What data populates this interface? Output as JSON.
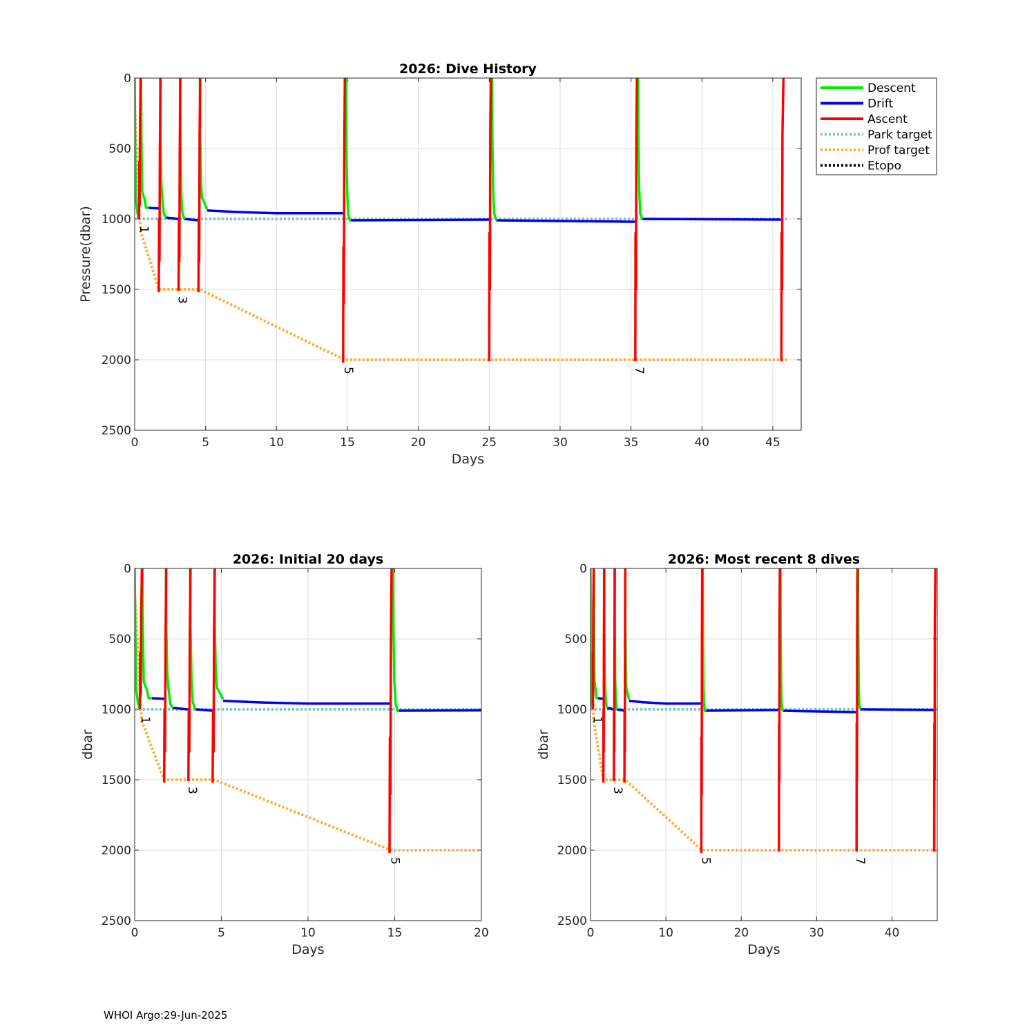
{
  "footer": "WHOI Argo:29-Jun-2025",
  "colors": {
    "descent": "#00ee00",
    "drift": "#0000ee",
    "ascent": "#ff0000",
    "park_target": "#7fc6cc",
    "prof_target": "#ffaa33",
    "etopo": "#000000"
  },
  "chart_data": [
    {
      "type": "line",
      "title": "2026: Dive History",
      "xlabel": "Days",
      "ylabel": "Pressure(dbar)",
      "xlim": [
        0,
        47
      ],
      "ylim": [
        0,
        2500
      ],
      "y_reversed": true,
      "xticks": [
        0,
        5,
        10,
        15,
        20,
        25,
        30,
        35,
        40,
        45
      ],
      "yticks": [
        0,
        500,
        1000,
        1500,
        2000,
        2500
      ],
      "grid": true,
      "legend": {
        "placement": "outside-top-right",
        "entries": [
          "Descent",
          "Drift",
          "Ascent",
          "Park target",
          "Prof target",
          "Etopo"
        ]
      },
      "profile_labels": [
        {
          "text": "1",
          "x": 0.4,
          "y": 1000
        },
        {
          "text": "3",
          "x": 3.1,
          "y": 1500
        },
        {
          "text": "5",
          "x": 14.8,
          "y": 2000
        },
        {
          "text": "7",
          "x": 35.3,
          "y": 2000
        }
      ]
    },
    {
      "type": "line",
      "title": "2026: Initial 20 days",
      "xlabel": "Days",
      "ylabel": "dbar",
      "xlim": [
        0,
        20
      ],
      "ylim": [
        0,
        2500
      ],
      "y_reversed": true,
      "xticks": [
        0,
        5,
        10,
        15,
        20
      ],
      "yticks": [
        0,
        500,
        1000,
        1500,
        2000,
        2500
      ],
      "grid": true,
      "profile_labels": [
        {
          "text": "1",
          "x": 0.4,
          "y": 1000
        },
        {
          "text": "3",
          "x": 3.1,
          "y": 1500
        },
        {
          "text": "5",
          "x": 14.8,
          "y": 2000
        }
      ]
    },
    {
      "type": "line",
      "title": "2026: Most recent 8 dives",
      "xlabel": "Days",
      "ylabel": "dbar",
      "xlim": [
        0,
        46
      ],
      "ylim": [
        0,
        2500
      ],
      "y_reversed": true,
      "xticks": [
        0,
        10,
        20,
        30,
        40
      ],
      "yticks": [
        0,
        500,
        1000,
        1500,
        2000,
        2500
      ],
      "grid": true,
      "profile_labels": [
        {
          "text": "1",
          "x": 0.4,
          "y": 1000
        },
        {
          "text": "3",
          "x": 3.1,
          "y": 1500
        },
        {
          "text": "5",
          "x": 14.8,
          "y": 2000
        },
        {
          "text": "7",
          "x": 35.3,
          "y": 2000
        }
      ]
    }
  ],
  "series": {
    "park_target": {
      "name": "Park target",
      "x": [
        0,
        0.05,
        46
      ],
      "y": [
        1000,
        1000,
        1000
      ]
    },
    "prof_target": {
      "name": "Prof target",
      "x": [
        0,
        0.4,
        1.7,
        4.6,
        14.8,
        46
      ],
      "y": [
        170,
        1080,
        1500,
        1500,
        2000,
        2000
      ]
    },
    "descent": {
      "name": "Descent",
      "segments": [
        {
          "x": [
            0.0,
            0.03,
            0.08,
            0.15,
            0.2,
            0.3
          ],
          "y": [
            0,
            400,
            850,
            920,
            960,
            1000
          ]
        },
        {
          "x": [
            0.45,
            0.47,
            0.52,
            0.6,
            0.7,
            0.8,
            1.0
          ],
          "y": [
            0,
            400,
            800,
            830,
            860,
            920,
            920
          ]
        },
        {
          "x": [
            1.8,
            1.82,
            1.88,
            1.95,
            2.05,
            2.2
          ],
          "y": [
            0,
            400,
            750,
            850,
            960,
            990
          ]
        },
        {
          "x": [
            3.2,
            3.22,
            3.28,
            3.35,
            3.5
          ],
          "y": [
            0,
            400,
            800,
            950,
            1000
          ]
        },
        {
          "x": [
            4.6,
            4.62,
            4.68,
            4.75,
            4.85,
            5.1
          ],
          "y": [
            0,
            400,
            760,
            850,
            870,
            930
          ]
        },
        {
          "x": [
            14.9,
            14.92,
            14.98,
            15.05,
            15.2
          ],
          "y": [
            0,
            400,
            800,
            960,
            1020
          ]
        },
        {
          "x": [
            25.2,
            25.22,
            25.28,
            25.35,
            25.5
          ],
          "y": [
            0,
            400,
            800,
            960,
            1010
          ]
        },
        {
          "x": [
            35.5,
            35.52,
            35.58,
            35.65,
            35.8
          ],
          "y": [
            0,
            400,
            800,
            960,
            1000
          ]
        }
      ]
    },
    "drift": {
      "name": "Drift",
      "segments": [
        {
          "x": [
            0.8,
            1.7
          ],
          "y": [
            920,
            925
          ]
        },
        {
          "x": [
            2.2,
            3.1
          ],
          "y": [
            990,
            1000
          ]
        },
        {
          "x": [
            3.5,
            4.5
          ],
          "y": [
            1000,
            1010
          ]
        },
        {
          "x": [
            5.1,
            7.0,
            10.0,
            14.7
          ],
          "y": [
            940,
            950,
            960,
            960
          ]
        },
        {
          "x": [
            15.2,
            25.1
          ],
          "y": [
            1010,
            1005
          ]
        },
        {
          "x": [
            25.5,
            35.4
          ],
          "y": [
            1010,
            1020
          ]
        },
        {
          "x": [
            35.8,
            45.6
          ],
          "y": [
            1000,
            1005
          ]
        }
      ]
    },
    "ascent": {
      "name": "Ascent",
      "segments": [
        {
          "x": [
            0.3,
            0.32,
            0.35,
            0.38,
            0.42
          ],
          "y": [
            1000,
            600,
            900,
            300,
            0
          ]
        },
        {
          "x": [
            1.7,
            1.72,
            1.75,
            1.78,
            1.82
          ],
          "y": [
            1520,
            1000,
            1300,
            500,
            0
          ]
        },
        {
          "x": [
            3.1,
            3.12,
            3.15,
            3.18,
            3.22
          ],
          "y": [
            1510,
            1000,
            1300,
            500,
            0
          ]
        },
        {
          "x": [
            4.5,
            4.52,
            4.55,
            4.58,
            4.62
          ],
          "y": [
            1520,
            1000,
            1300,
            400,
            0
          ]
        },
        {
          "x": [
            14.7,
            14.72,
            14.75,
            14.78,
            14.82
          ],
          "y": [
            2020,
            1200,
            1600,
            500,
            0
          ]
        },
        {
          "x": [
            25.0,
            25.02,
            25.05,
            25.08,
            25.12
          ],
          "y": [
            2010,
            1100,
            1500,
            400,
            0
          ]
        },
        {
          "x": [
            35.3,
            35.32,
            35.35,
            35.38,
            35.42
          ],
          "y": [
            2010,
            1100,
            1500,
            400,
            0
          ]
        },
        {
          "x": [
            45.6,
            45.62,
            45.65,
            45.68,
            45.75
          ],
          "y": [
            2010,
            1100,
            1500,
            400,
            0
          ]
        }
      ]
    }
  }
}
